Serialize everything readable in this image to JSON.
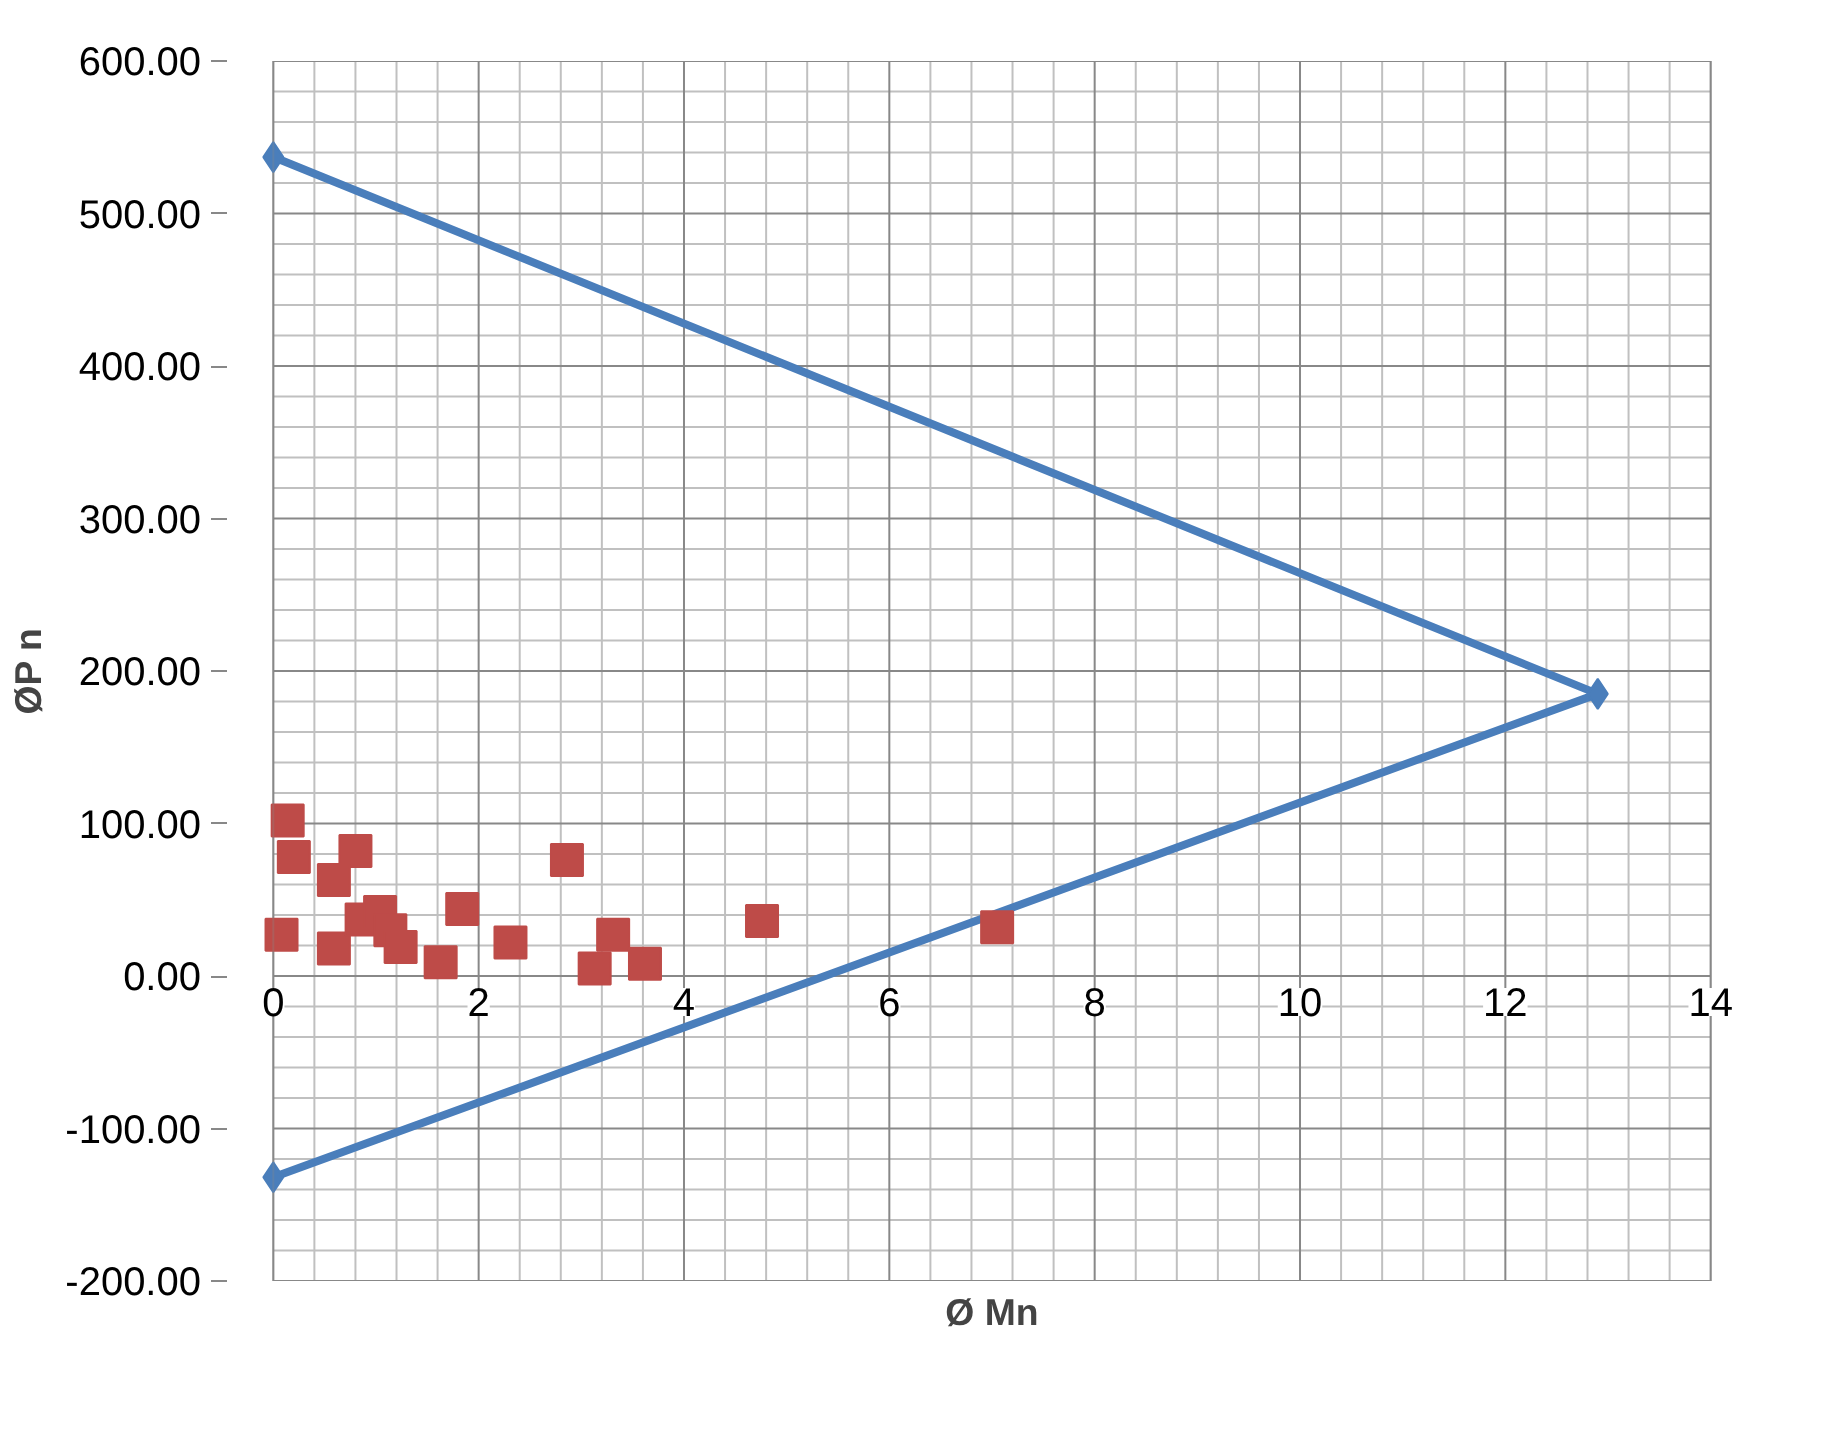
{
  "chart_data": {
    "type": "scatter",
    "xlabel": "Ø Mn",
    "ylabel": "ØP n",
    "xlim": [
      0,
      14
    ],
    "ylim": [
      -200,
      600
    ],
    "xticks": [
      0,
      2,
      4,
      6,
      8,
      10,
      12,
      14
    ],
    "yticks": [
      {
        "value": -200,
        "label": "-200.00"
      },
      {
        "value": -100,
        "label": "-100.00"
      },
      {
        "value": 0,
        "label": "0.00"
      },
      {
        "value": 100,
        "label": "100.00"
      },
      {
        "value": 200,
        "label": "200.00"
      },
      {
        "value": 300,
        "label": "300.00"
      },
      {
        "value": 400,
        "label": "400.00"
      },
      {
        "value": 500,
        "label": "500.00"
      },
      {
        "value": 600,
        "label": "600.00"
      }
    ],
    "grid": true,
    "series": [
      {
        "type": "line",
        "color": "#4a7ebb",
        "marker": "diamond",
        "x": [
          0,
          12.9,
          0
        ],
        "values": [
          537,
          185,
          -132
        ]
      },
      {
        "color": "#be4b48",
        "marker": "square",
        "x": [
          0.14,
          0.2,
          0.8,
          0.59,
          0.08,
          0.59,
          0.86,
          1.04,
          1.14,
          1.24,
          1.63,
          1.84,
          2.31,
          2.86,
          3.31,
          3.13,
          3.62,
          4.76,
          7.05
        ],
        "values": [
          102,
          78,
          82,
          63,
          27,
          18,
          37,
          42,
          30,
          19,
          9,
          44,
          22,
          76,
          27,
          5,
          8,
          36,
          32
        ]
      }
    ]
  }
}
